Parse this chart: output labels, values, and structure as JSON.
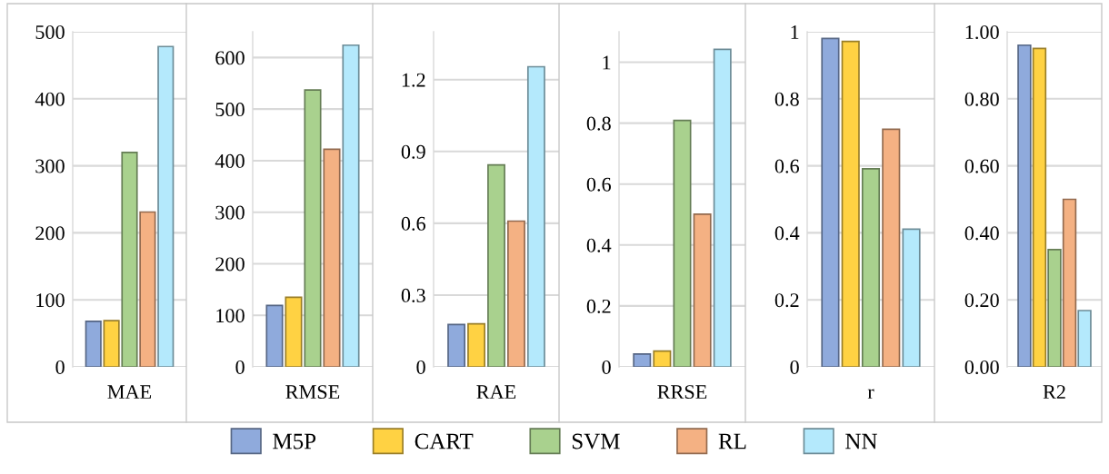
{
  "chart_data": [
    {
      "type": "bar",
      "categories": [
        "MAE"
      ],
      "ylim": [
        0,
        500
      ],
      "yticks": [
        0,
        100,
        200,
        300,
        400,
        500
      ],
      "grid": "y",
      "legend": "bottom",
      "series": [
        {
          "name": "M5P",
          "color": "#8faadc",
          "values": [
            68
          ]
        },
        {
          "name": "CART",
          "color": "#ffd243",
          "values": [
            69
          ]
        },
        {
          "name": "SVM",
          "color": "#a9d18e",
          "values": [
            320
          ]
        },
        {
          "name": "RL",
          "color": "#f4b183",
          "values": [
            231
          ]
        },
        {
          "name": "NN",
          "color": "#b4e9fc",
          "values": [
            478
          ]
        }
      ]
    },
    {
      "type": "bar",
      "categories": [
        "RMSE"
      ],
      "ylim": [
        0,
        650
      ],
      "yticks": [
        0,
        100,
        200,
        300,
        400,
        500,
        600
      ],
      "grid": "y",
      "series": [
        {
          "color": "#8faadc",
          "values": [
            119
          ]
        },
        {
          "color": "#ffd243",
          "values": [
            135
          ]
        },
        {
          "color": "#a9d18e",
          "values": [
            537
          ]
        },
        {
          "color": "#f4b183",
          "values": [
            422
          ]
        },
        {
          "color": "#b4e9fc",
          "values": [
            624
          ]
        }
      ]
    },
    {
      "type": "bar",
      "categories": [
        "RAE"
      ],
      "ylim": [
        0,
        1.4
      ],
      "yticks": [
        0,
        0.3,
        0.6,
        0.9,
        1.2
      ],
      "grid": "y",
      "series": [
        {
          "color": "#8faadc",
          "values": [
            0.177
          ]
        },
        {
          "color": "#ffd243",
          "values": [
            0.18
          ]
        },
        {
          "color": "#a9d18e",
          "values": [
            0.844
          ]
        },
        {
          "color": "#f4b183",
          "values": [
            0.609
          ]
        },
        {
          "color": "#b4e9fc",
          "values": [
            1.254
          ]
        }
      ]
    },
    {
      "type": "bar",
      "categories": [
        "RRSE"
      ],
      "ylim": [
        0,
        1.1
      ],
      "yticks": [
        0,
        0.2,
        0.4,
        0.6,
        0.8,
        1
      ],
      "grid": "y",
      "series": [
        {
          "color": "#8faadc",
          "values": [
            0.042
          ]
        },
        {
          "color": "#ffd243",
          "values": [
            0.052
          ]
        },
        {
          "color": "#a9d18e",
          "values": [
            0.809
          ]
        },
        {
          "color": "#f4b183",
          "values": [
            0.501
          ]
        },
        {
          "color": "#b4e9fc",
          "values": [
            1.042
          ]
        }
      ]
    },
    {
      "type": "bar",
      "categories": [
        "r"
      ],
      "ylim": [
        0,
        1
      ],
      "yticks": [
        0,
        0.2,
        0.4,
        0.6,
        0.8,
        1
      ],
      "grid": "y",
      "series": [
        {
          "color": "#8faadc",
          "values": [
            0.98
          ]
        },
        {
          "color": "#ffd243",
          "values": [
            0.971
          ]
        },
        {
          "color": "#a9d18e",
          "values": [
            0.591
          ]
        },
        {
          "color": "#f4b183",
          "values": [
            0.709
          ]
        },
        {
          "color": "#b4e9fc",
          "values": [
            0.411
          ]
        }
      ]
    },
    {
      "type": "bar",
      "categories": [
        "R2"
      ],
      "ylim": [
        0,
        1
      ],
      "yticks": [
        {
          "value": 0,
          "label": "0.00"
        },
        {
          "value": 0.2,
          "label": "0.20"
        },
        {
          "value": 0.4,
          "label": "0.40"
        },
        {
          "value": 0.6,
          "label": "0.60"
        },
        {
          "value": 0.8,
          "label": "0.80"
        },
        {
          "value": 1,
          "label": "1.00"
        }
      ],
      "grid": "y",
      "series": [
        {
          "color": "#8faadc",
          "values": [
            0.96
          ]
        },
        {
          "color": "#ffd243",
          "values": [
            0.95
          ]
        },
        {
          "color": "#a9d18e",
          "values": [
            0.35
          ]
        },
        {
          "color": "#f4b183",
          "values": [
            0.5
          ]
        },
        {
          "color": "#b4e9fc",
          "values": [
            0.168
          ]
        }
      ]
    }
  ]
}
